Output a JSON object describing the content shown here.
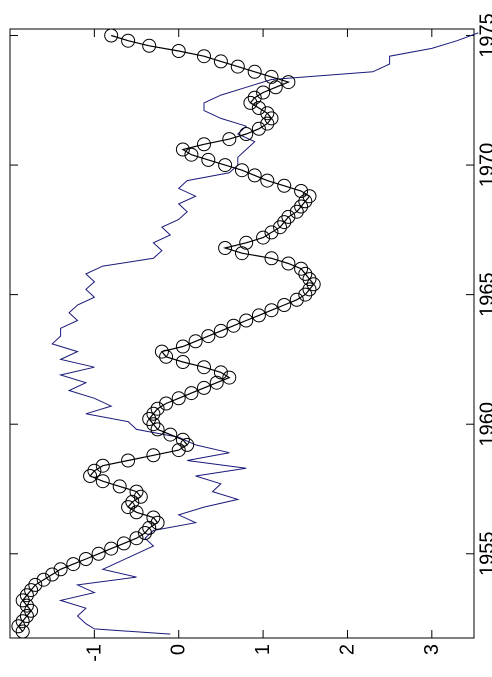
{
  "chart_data": {
    "type": "line",
    "orientation": "rotated-90",
    "xlim": [
      1951.75,
      1975.25
    ],
    "ylim": [
      -2.0,
      3.5
    ],
    "x_ticks": [
      {
        "value": 1955,
        "label": "1955"
      },
      {
        "value": 1960,
        "label": "1960"
      },
      {
        "value": 1965,
        "label": "1965"
      },
      {
        "value": 1970,
        "label": "1970"
      },
      {
        "value": 1975,
        "label": "1975"
      }
    ],
    "y_ticks": [
      {
        "value": -1,
        "label": "-1"
      },
      {
        "value": 0,
        "label": "0"
      },
      {
        "value": 1,
        "label": "1"
      },
      {
        "value": 2,
        "label": "2"
      },
      {
        "value": 3,
        "label": "3"
      }
    ],
    "grid": false,
    "legend": "none",
    "series": [
      {
        "style": "line",
        "color": "#1a1a7a",
        "x": [
          1951.9,
          1952.1,
          1952.3,
          1952.6,
          1952.9,
          1953.2,
          1953.5,
          1953.8,
          1954.1,
          1954.4,
          1954.7,
          1955.0,
          1955.3,
          1955.6,
          1955.9,
          1956.2,
          1956.5,
          1956.8,
          1957.1,
          1957.4,
          1957.7,
          1958.0,
          1958.3,
          1958.6,
          1958.9,
          1959.2,
          1959.5,
          1959.8,
          1960.1,
          1960.4,
          1960.7,
          1961.0,
          1961.3,
          1961.6,
          1961.9,
          1962.2,
          1962.5,
          1962.8,
          1963.1,
          1963.4,
          1963.7,
          1964.0,
          1964.3,
          1964.6,
          1964.9,
          1965.2,
          1965.5,
          1965.8,
          1966.1,
          1966.4,
          1966.7,
          1967.0,
          1967.3,
          1967.6,
          1967.9,
          1968.2,
          1968.5,
          1968.8,
          1969.1,
          1969.4,
          1969.7,
          1970.0,
          1970.3,
          1970.6,
          1970.9,
          1971.2,
          1971.5,
          1971.8,
          1972.1,
          1972.4,
          1972.7,
          1973.0,
          1973.3,
          1973.6,
          1973.9,
          1974.2,
          1974.5,
          1974.8,
          1975.1
        ],
        "y": [
          -0.1,
          -1.0,
          -1.1,
          -1.2,
          -1.1,
          -1.4,
          -1.0,
          -1.2,
          -0.5,
          -0.9,
          -0.7,
          -0.5,
          -0.3,
          -0.4,
          -0.3,
          0.2,
          0.0,
          0.3,
          0.7,
          0.4,
          0.5,
          0.2,
          0.8,
          0.1,
          0.6,
          0.2,
          0.0,
          -0.5,
          -0.6,
          -1.1,
          -0.8,
          -1.0,
          -1.3,
          -1.1,
          -1.4,
          -1.0,
          -1.4,
          -1.2,
          -1.5,
          -1.4,
          -1.4,
          -1.2,
          -1.3,
          -1.2,
          -1.0,
          -1.1,
          -1.0,
          -1.1,
          -0.9,
          -0.3,
          -0.2,
          -0.3,
          -0.1,
          -0.2,
          0.0,
          0.1,
          0.0,
          0.2,
          0.0,
          0.1,
          0.6,
          0.7,
          0.7,
          0.8,
          0.9,
          0.7,
          0.8,
          0.5,
          0.3,
          0.3,
          0.5,
          0.8,
          1.1,
          2.3,
          2.5,
          2.5,
          3.0,
          3.3,
          3.55
        ]
      },
      {
        "style": "line+markers",
        "marker": "open-circle",
        "color": "#000000",
        "x": [
          1952.0,
          1952.2,
          1952.4,
          1952.6,
          1952.8,
          1953.0,
          1953.2,
          1953.4,
          1953.6,
          1953.8,
          1954.0,
          1954.2,
          1954.4,
          1954.6,
          1954.8,
          1955.0,
          1955.2,
          1955.4,
          1955.6,
          1955.8,
          1956.0,
          1956.2,
          1956.4,
          1956.6,
          1956.8,
          1957.0,
          1957.2,
          1957.4,
          1957.6,
          1957.8,
          1958.0,
          1958.2,
          1958.4,
          1958.6,
          1958.8,
          1959.0,
          1959.2,
          1959.4,
          1959.6,
          1959.8,
          1960.0,
          1960.2,
          1960.4,
          1960.6,
          1960.8,
          1961.0,
          1961.2,
          1961.4,
          1961.6,
          1961.8,
          1962.0,
          1962.2,
          1962.4,
          1962.6,
          1962.8,
          1963.0,
          1963.2,
          1963.4,
          1963.6,
          1963.8,
          1964.0,
          1964.2,
          1964.4,
          1964.6,
          1964.8,
          1965.0,
          1965.2,
          1965.4,
          1965.6,
          1965.8,
          1966.0,
          1966.2,
          1966.4,
          1966.6,
          1966.8,
          1967.0,
          1967.2,
          1967.4,
          1967.6,
          1967.8,
          1968.0,
          1968.2,
          1968.4,
          1968.6,
          1968.8,
          1969.0,
          1969.2,
          1969.4,
          1969.6,
          1969.8,
          1970.0,
          1970.2,
          1970.4,
          1970.6,
          1970.8,
          1971.0,
          1971.2,
          1971.4,
          1971.6,
          1971.8,
          1972.0,
          1972.2,
          1972.4,
          1972.6,
          1972.8,
          1973.0,
          1973.2,
          1973.4,
          1973.6,
          1973.8,
          1974.0,
          1974.2,
          1974.4,
          1974.6,
          1974.8,
          1975.0
        ],
        "y": [
          -1.85,
          -1.9,
          -1.85,
          -1.8,
          -1.75,
          -1.8,
          -1.85,
          -1.8,
          -1.75,
          -1.7,
          -1.6,
          -1.5,
          -1.4,
          -1.25,
          -1.1,
          -0.95,
          -0.8,
          -0.65,
          -0.5,
          -0.4,
          -0.35,
          -0.25,
          -0.3,
          -0.5,
          -0.6,
          -0.55,
          -0.45,
          -0.5,
          -0.7,
          -0.9,
          -1.05,
          -1.0,
          -0.9,
          -0.6,
          -0.3,
          0.0,
          0.1,
          0.05,
          -0.1,
          -0.25,
          -0.3,
          -0.35,
          -0.3,
          -0.25,
          -0.15,
          0.0,
          0.15,
          0.3,
          0.45,
          0.6,
          0.5,
          0.3,
          0.05,
          -0.15,
          -0.2,
          0.05,
          0.2,
          0.35,
          0.5,
          0.65,
          0.8,
          0.95,
          1.1,
          1.25,
          1.4,
          1.5,
          1.55,
          1.6,
          1.55,
          1.5,
          1.45,
          1.3,
          1.1,
          0.75,
          0.55,
          0.8,
          1.0,
          1.1,
          1.2,
          1.25,
          1.3,
          1.4,
          1.45,
          1.5,
          1.55,
          1.45,
          1.25,
          1.05,
          0.9,
          0.75,
          0.55,
          0.35,
          0.15,
          0.05,
          0.3,
          0.6,
          0.8,
          0.95,
          1.05,
          1.1,
          1.05,
          0.95,
          0.85,
          0.9,
          1.0,
          1.15,
          1.3,
          1.1,
          0.9,
          0.7,
          0.5,
          0.3,
          0.0,
          -0.35,
          -0.6,
          -0.8
        ]
      }
    ]
  }
}
